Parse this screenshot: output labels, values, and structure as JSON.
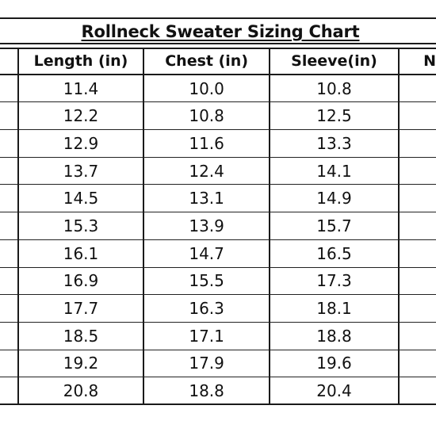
{
  "title": "Rollneck Sweater Sizing Chart",
  "columns": {
    "size": "",
    "length": "Length (in)",
    "chest": "Chest (in)",
    "sleeve": "Sleeve(in)",
    "next": "N"
  },
  "rows": [
    {
      "length": "11.4",
      "chest": "10.0",
      "sleeve": "10.8"
    },
    {
      "length": "12.2",
      "chest": "10.8",
      "sleeve": "12.5"
    },
    {
      "length": "12.9",
      "chest": "11.6",
      "sleeve": "13.3"
    },
    {
      "length": "13.7",
      "chest": "12.4",
      "sleeve": "14.1"
    },
    {
      "length": "14.5",
      "chest": "13.1",
      "sleeve": "14.9"
    },
    {
      "length": "15.3",
      "chest": "13.9",
      "sleeve": "15.7"
    },
    {
      "length": "16.1",
      "chest": "14.7",
      "sleeve": "16.5"
    },
    {
      "length": "16.9",
      "chest": "15.5",
      "sleeve": "17.3"
    },
    {
      "length": "17.7",
      "chest": "16.3",
      "sleeve": "18.1"
    },
    {
      "length": "18.5",
      "chest": "17.1",
      "sleeve": "18.8"
    },
    {
      "length": "19.2",
      "chest": "17.9",
      "sleeve": "19.6"
    },
    {
      "length": "20.8",
      "chest": "18.8",
      "sleeve": "20.4"
    }
  ]
}
